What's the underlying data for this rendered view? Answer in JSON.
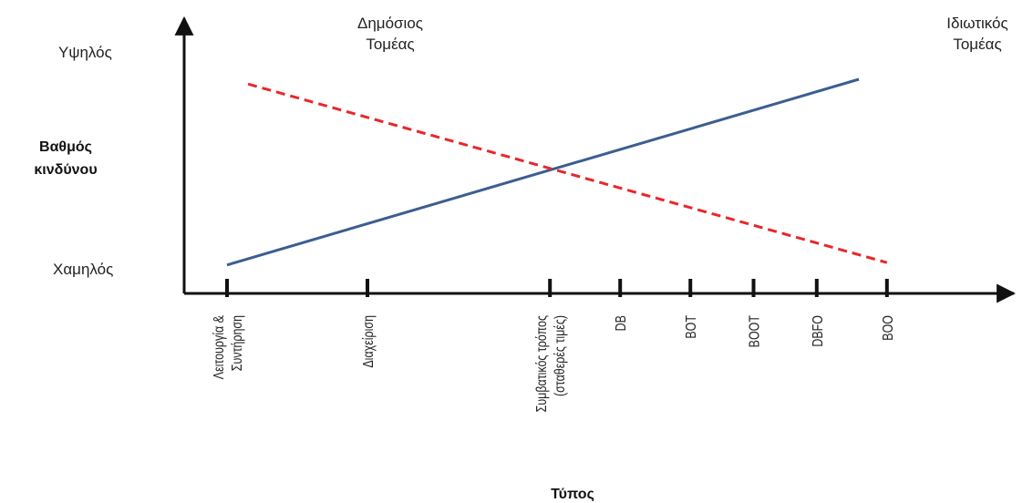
{
  "chart_data": {
    "type": "line",
    "categories": [
      "Λειτουργία & Συντήρηση",
      "Διαχείριση",
      "Συμβατικός τρόπος (σταθερές τιμές)",
      "DB",
      "BOT",
      "BOOT",
      "DBFO",
      "BOO"
    ],
    "category_positions": [
      0,
      1,
      2.3,
      2.8,
      3.3,
      3.75,
      4.2,
      4.7
    ],
    "xlabel": "Τύπος",
    "ylabel_lines": [
      "Βαθμός",
      "κινδύνου"
    ],
    "y_tick_labels": {
      "high": "Υψηλός",
      "low": "Χαμηλός"
    },
    "ylim": [
      0,
      1
    ],
    "annotations": {
      "public_sector": [
        "Δημόσιος",
        "Τομέας"
      ],
      "private_sector": [
        "Ιδιωτικός",
        "Τομέας"
      ]
    },
    "series": [
      {
        "style": "solid",
        "color": "#3b5e91",
        "x": [
          0.0,
          4.5
        ],
        "y": [
          0.12,
          0.9
        ]
      },
      {
        "style": "dashed",
        "color": "#e8272a",
        "x": [
          0.15,
          4.7
        ],
        "y": [
          0.88,
          0.13
        ]
      }
    ],
    "grid": false,
    "legend": "none"
  }
}
